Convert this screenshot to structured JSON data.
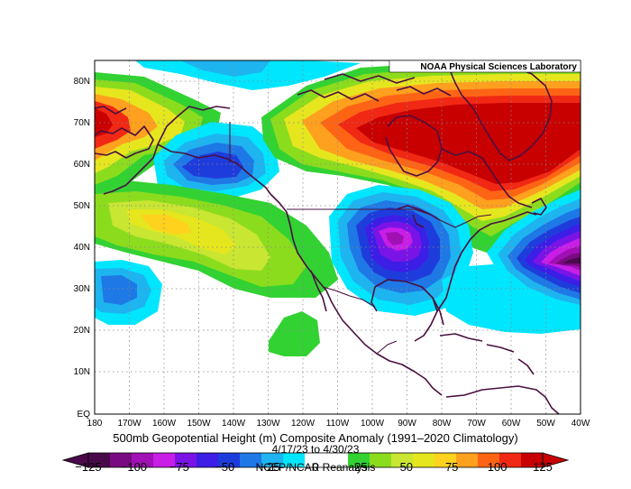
{
  "map": {
    "credit": "NOAA Physical Sciences Laboratory",
    "lat_labels": [
      "80N",
      "70N",
      "60N",
      "50N",
      "40N",
      "30N",
      "20N",
      "10N",
      "EQ"
    ],
    "lon_labels": [
      "180",
      "170W",
      "160W",
      "150W",
      "140W",
      "130W",
      "120W",
      "110W",
      "100W",
      "90W",
      "80W",
      "70W",
      "60W",
      "50W",
      "40W"
    ],
    "title": "500mb Geopotential Height (m) Composite Anomaly (1991–2020 Climatology)",
    "dates": "4/17/23  to 4/30/23",
    "source": "NCEP/NCAR Reanalysis"
  },
  "colorbar": {
    "labels": [
      "−125",
      "−100",
      "−75",
      "−50",
      "−25",
      "0",
      "25",
      "50",
      "75",
      "100",
      "125"
    ],
    "colors": [
      "#4a0a4a",
      "#7a0a82",
      "#a010b4",
      "#c81ee6",
      "#7a14e6",
      "#3c1ee6",
      "#1e3cdc",
      "#1e78e6",
      "#1eb4f0",
      "#00e6ff",
      "#ffffff",
      "#ffffff",
      "#32d232",
      "#8cdc1e",
      "#c8e632",
      "#e6e61e",
      "#ffd21e",
      "#ffa01e",
      "#ff6414",
      "#f02814",
      "#c80000"
    ]
  }
}
